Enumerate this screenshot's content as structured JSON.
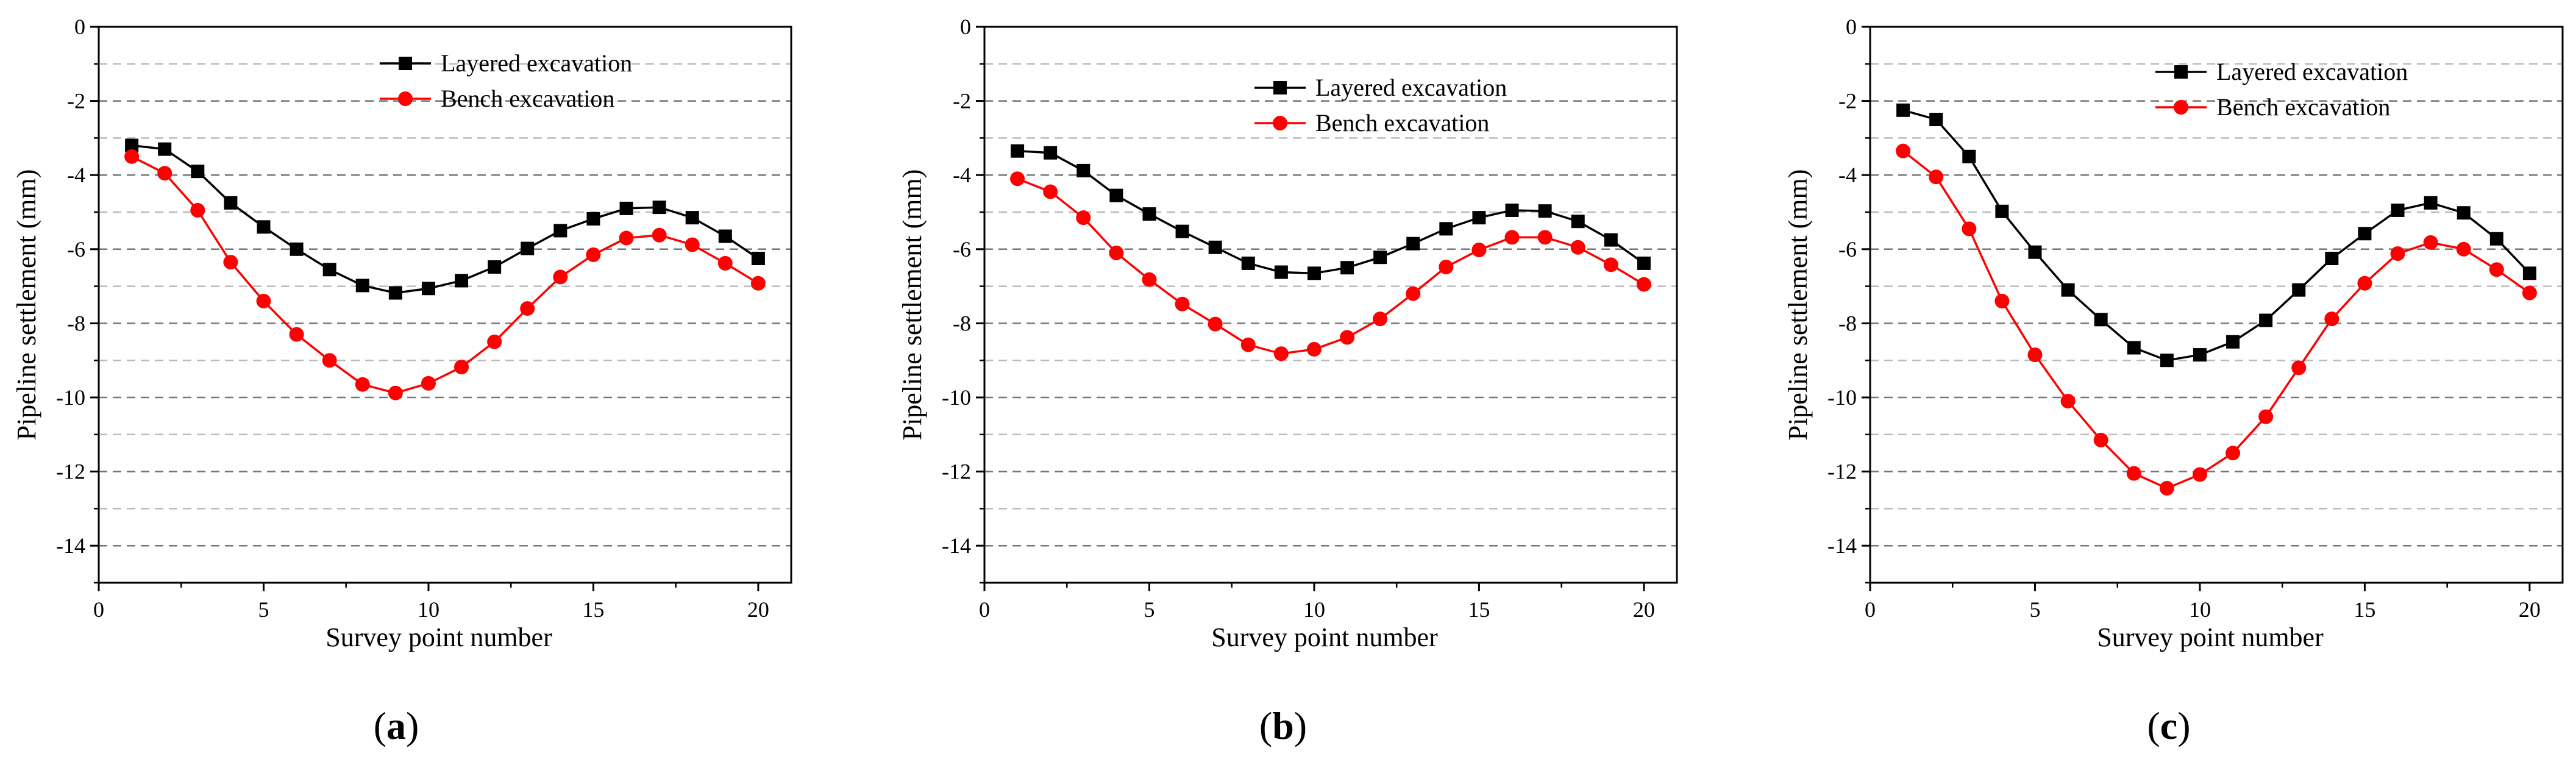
{
  "colors": {
    "layered": "#000000",
    "bench": "#ff0000",
    "grid_major": "#777777",
    "grid_minor": "#bbbbbb"
  },
  "chart_data": [
    {
      "type": "line",
      "panel_label": "a",
      "xlabel": "Survey point number",
      "ylabel": "Pipeline settlement (mm)",
      "xlim": [
        0,
        21
      ],
      "ylim": [
        -15,
        0
      ],
      "xticks": [
        0,
        5,
        10,
        15,
        20
      ],
      "yticks": [
        0,
        -2,
        -4,
        -6,
        -8,
        -10,
        -12,
        -14
      ],
      "grid": "horizontal-dashed",
      "legend_position": "top-right",
      "x": [
        1,
        2,
        3,
        4,
        5,
        6,
        7,
        8,
        9,
        10,
        11,
        12,
        13,
        14,
        15,
        16,
        17,
        18,
        19,
        20
      ],
      "series": [
        {
          "name": "Layered excavation",
          "marker": "square",
          "color": "#000000",
          "values": [
            -3.2,
            -3.3,
            -3.9,
            -4.75,
            -5.4,
            -6.0,
            -6.55,
            -6.98,
            -7.18,
            -7.06,
            -6.85,
            -6.48,
            -5.98,
            -5.5,
            -5.18,
            -4.9,
            -4.87,
            -5.15,
            -5.65,
            -6.25
          ]
        },
        {
          "name": "Bench excavation",
          "marker": "circle",
          "color": "#ff0000",
          "values": [
            -3.5,
            -3.95,
            -4.95,
            -6.35,
            -7.4,
            -8.3,
            -9.0,
            -9.65,
            -9.88,
            -9.62,
            -9.18,
            -8.5,
            -7.6,
            -6.75,
            -6.15,
            -5.7,
            -5.62,
            -5.88,
            -6.38,
            -6.92
          ]
        }
      ]
    },
    {
      "type": "line",
      "panel_label": "b",
      "xlabel": "Survey point number",
      "ylabel": "Pipeline settlement (mm)",
      "xlim": [
        0,
        21
      ],
      "ylim": [
        -15,
        0
      ],
      "xticks": [
        0,
        5,
        10,
        15,
        20
      ],
      "yticks": [
        0,
        -2,
        -4,
        -6,
        -8,
        -10,
        -12,
        -14
      ],
      "grid": "horizontal-dashed",
      "legend_position": "top-right",
      "x": [
        1,
        2,
        3,
        4,
        5,
        6,
        7,
        8,
        9,
        10,
        11,
        12,
        13,
        14,
        15,
        16,
        17,
        18,
        19,
        20
      ],
      "series": [
        {
          "name": "Layered excavation",
          "marker": "square",
          "color": "#000000",
          "values": [
            -3.35,
            -3.4,
            -3.88,
            -4.55,
            -5.05,
            -5.52,
            -5.95,
            -6.38,
            -6.62,
            -6.65,
            -6.5,
            -6.22,
            -5.85,
            -5.45,
            -5.15,
            -4.95,
            -4.97,
            -5.25,
            -5.75,
            -6.38
          ]
        },
        {
          "name": "Bench excavation",
          "marker": "circle",
          "color": "#ff0000",
          "values": [
            -4.1,
            -4.45,
            -5.15,
            -6.1,
            -6.82,
            -7.48,
            -8.02,
            -8.58,
            -8.82,
            -8.7,
            -8.38,
            -7.88,
            -7.2,
            -6.48,
            -6.02,
            -5.68,
            -5.68,
            -5.95,
            -6.42,
            -6.95
          ]
        }
      ]
    },
    {
      "type": "line",
      "panel_label": "c",
      "xlabel": "Survey point number",
      "ylabel": "Pipeline settlement (mm)",
      "xlim": [
        0,
        21
      ],
      "ylim": [
        -15,
        0
      ],
      "xticks": [
        0,
        5,
        10,
        15,
        20
      ],
      "yticks": [
        0,
        -2,
        -4,
        -6,
        -8,
        -10,
        -12,
        -14
      ],
      "grid": "horizontal-dashed",
      "legend_position": "top-right",
      "x": [
        1,
        2,
        3,
        4,
        5,
        6,
        7,
        8,
        9,
        10,
        11,
        12,
        13,
        14,
        15,
        16,
        17,
        18,
        19,
        20
      ],
      "series": [
        {
          "name": "Layered excavation",
          "marker": "square",
          "color": "#000000",
          "values": [
            -2.25,
            -2.5,
            -3.5,
            -4.98,
            -6.08,
            -7.1,
            -7.9,
            -8.66,
            -9.0,
            -8.85,
            -8.5,
            -7.92,
            -7.1,
            -6.25,
            -5.58,
            -4.95,
            -4.75,
            -5.02,
            -5.72,
            -6.65
          ]
        },
        {
          "name": "Bench excavation",
          "marker": "circle",
          "color": "#ff0000",
          "values": [
            -3.35,
            -4.05,
            -5.45,
            -7.4,
            -8.85,
            -10.1,
            -11.15,
            -12.05,
            -12.45,
            -12.08,
            -11.5,
            -10.52,
            -9.2,
            -7.88,
            -6.92,
            -6.12,
            -5.82,
            -6.0,
            -6.55,
            -7.18
          ]
        }
      ]
    }
  ]
}
